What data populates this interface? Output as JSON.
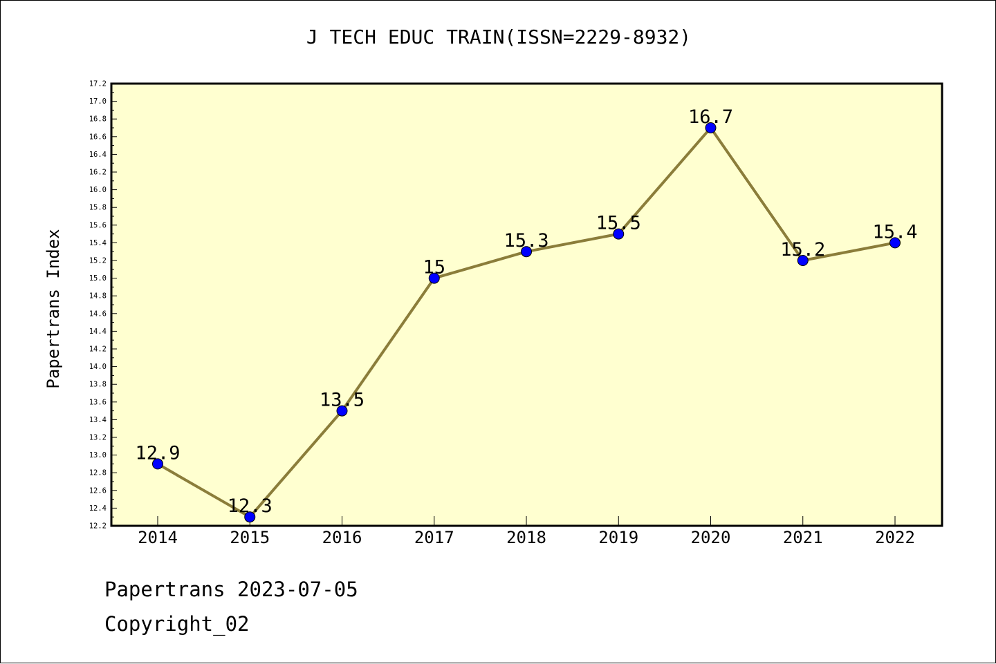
{
  "title": "J TECH EDUC TRAIN(ISSN=2229-8932)",
  "footer": {
    "date_line": "Papertrans 2023-07-05",
    "copyright_line": "Copyright_02"
  },
  "colors": {
    "plot_bg": "#ffffd0",
    "line": "#8b7d3a",
    "marker": "#0000ff",
    "frame": "#000000"
  },
  "chart_data": {
    "type": "line",
    "title": "J TECH EDUC TRAIN(ISSN=2229-8932)",
    "xlabel": "",
    "ylabel": "Papertrans Index",
    "categories": [
      "2014",
      "2015",
      "2016",
      "2017",
      "2018",
      "2019",
      "2020",
      "2021",
      "2022"
    ],
    "series": [
      {
        "values": [
          12.9,
          12.3,
          13.5,
          15.0,
          15.3,
          15.5,
          16.7,
          15.2,
          15.4
        ]
      }
    ],
    "data_labels": [
      "12.9",
      "12.3",
      "13.5",
      "15",
      "15.3",
      "15.5",
      "16.7",
      "15.2",
      "15.4"
    ],
    "ylim": [
      12.2,
      17.2
    ],
    "yticks": [
      "12.2",
      "12.4",
      "12.6",
      "12.8",
      "13.0",
      "13.2",
      "13.4",
      "13.6",
      "13.8",
      "14.0",
      "14.2",
      "14.4",
      "14.6",
      "14.8",
      "15.0",
      "15.2",
      "15.4",
      "15.6",
      "15.8",
      "16.0",
      "16.2",
      "16.4",
      "16.6",
      "16.8",
      "17.0",
      "17.2"
    ],
    "grid": false,
    "legend": "none"
  }
}
